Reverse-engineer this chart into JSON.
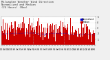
{
  "title": "Milwaukee Weather Wind Direction\nNormalized and Median\n(24 Hours) (New)",
  "title_fontsize": 2.8,
  "bg_color": "#f0f0f0",
  "plot_bg_color": "#ffffff",
  "grid_color": "#cccccc",
  "bar_color": "#cc0000",
  "median_color": "#0000cc",
  "ylim": [
    0,
    5
  ],
  "yticks": [
    1,
    2,
    3,
    4,
    5
  ],
  "ytick_labels": [
    "1",
    "2",
    "3",
    "4",
    "5"
  ],
  "n_bars": 288,
  "seed": 7,
  "legend_items": [
    {
      "label": "Normalized",
      "color": "#0000cc"
    },
    {
      "label": "Median",
      "color": "#cc0000"
    }
  ],
  "legend_fontsize": 2.2,
  "tick_fontsize": 2.2,
  "bar_width": 1.0,
  "vline_positions": [
    96,
    192
  ],
  "vline_color": "#aaaaaa",
  "vline_style": ":"
}
